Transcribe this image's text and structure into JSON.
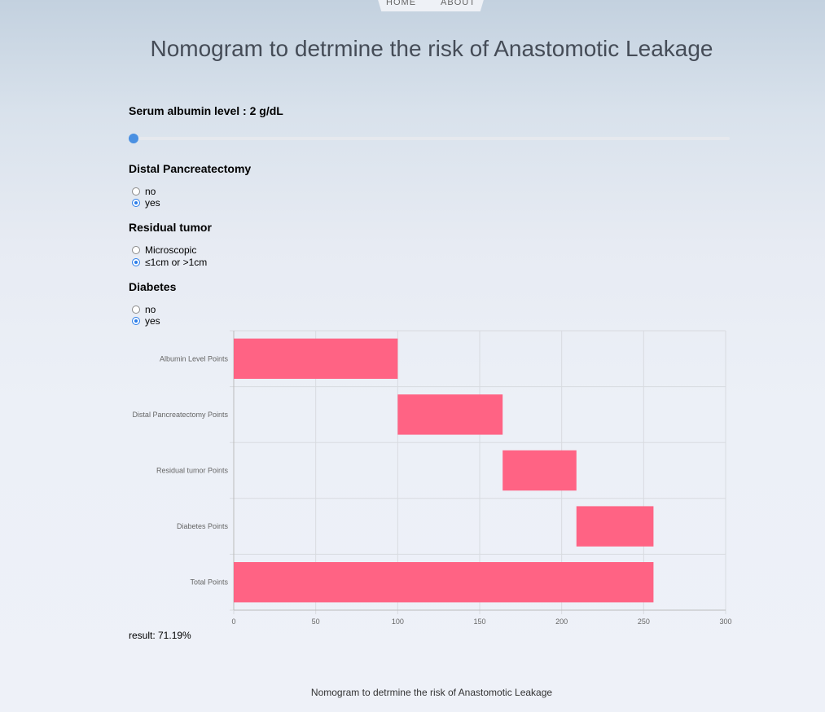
{
  "nav": {
    "items": [
      "HOME",
      "ABOUT"
    ]
  },
  "page": {
    "title": "Nomogram to detrmine the risk of Anastomotic Leakage"
  },
  "albumin": {
    "label": "Serum albumin level : 2 g/dL",
    "value": 2,
    "min": 2,
    "max": 5
  },
  "distal_pancreatectomy": {
    "label": "Distal Pancreatectomy",
    "options": [
      {
        "label": "no",
        "checked": false
      },
      {
        "label": "yes",
        "checked": true
      }
    ]
  },
  "residual_tumor": {
    "label": "Residual tumor",
    "options": [
      {
        "label": "Microscopic",
        "checked": false
      },
      {
        "label": "≤1cm or >1cm",
        "checked": true
      }
    ]
  },
  "diabetes": {
    "label": "Diabetes",
    "options": [
      {
        "label": "no",
        "checked": false
      },
      {
        "label": "yes",
        "checked": true
      }
    ]
  },
  "chart_data": {
    "type": "bar",
    "orientation": "horizontal",
    "stacked_waterfall": true,
    "categories": [
      "Albumin Level Points",
      "Distal Pancreatectomy Points",
      "Residual tumor Points",
      "Diabetes Points",
      "Total Points"
    ],
    "ranges": [
      [
        0,
        100
      ],
      [
        100,
        164
      ],
      [
        164,
        209
      ],
      [
        209,
        256
      ],
      [
        0,
        256
      ]
    ],
    "xlim": [
      0,
      300
    ],
    "xticks": [
      0,
      50,
      100,
      150,
      200,
      250,
      300
    ],
    "grid": true,
    "bar_color": "#ff6384"
  },
  "result": {
    "text": "result: 71.19%"
  },
  "footer": {
    "text": "Nomogram to detrmine the risk of Anastomotic Leakage"
  },
  "colors": {
    "accent": "#4a90e2",
    "bar": "#ff6384"
  }
}
